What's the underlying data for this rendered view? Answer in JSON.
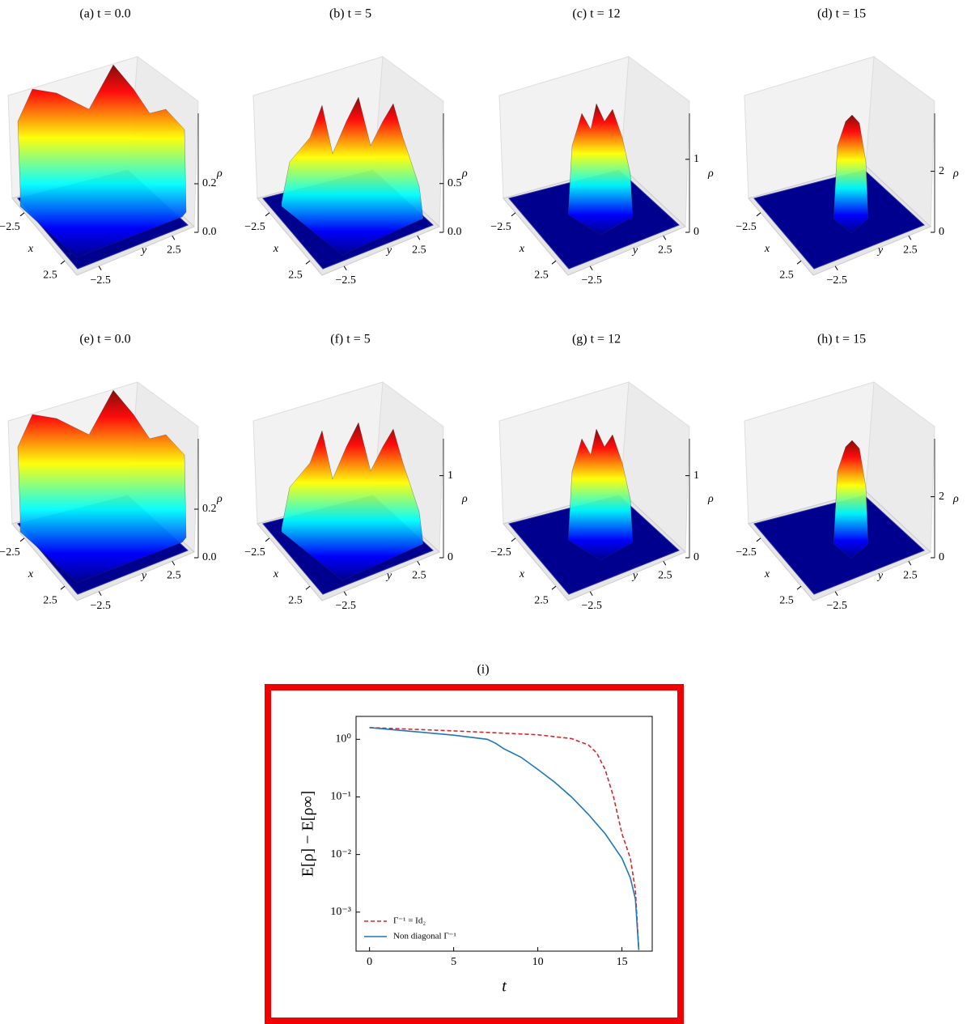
{
  "chart_data": [
    {
      "type": "surface",
      "title": "(a) t = 0.0",
      "xlabel": "x",
      "ylabel": "y",
      "zlabel": "ρ",
      "xlim": [
        -4,
        4
      ],
      "ylim": [
        -4,
        4
      ],
      "zlim": [
        0,
        0.49
      ],
      "xticks": [
        {
          "value": -2.5,
          "label": "−2.5"
        },
        2.5
      ],
      "yticks": [
        {
          "value": -2.5,
          "label": "−2.5"
        },
        2.5
      ],
      "zticks": [
        {
          "value": 0,
          "label": "0.0"
        },
        0.2
      ]
    },
    {
      "type": "surface",
      "title": "(b) t = 5",
      "xlabel": "x",
      "ylabel": "y",
      "zlabel": "ρ",
      "xlim": [
        -4,
        4
      ],
      "ylim": [
        -4,
        4
      ],
      "zlim": [
        0,
        1.22
      ],
      "xticks": [
        {
          "value": -2.5,
          "label": "−2.5"
        },
        2.5
      ],
      "yticks": [
        {
          "value": -2.5,
          "label": "−2.5"
        },
        2.5
      ],
      "zticks": [
        {
          "value": 0,
          "label": "0.0"
        },
        0.5
      ]
    },
    {
      "type": "surface",
      "title": "(c) t = 12",
      "xlabel": "x",
      "ylabel": "y",
      "zlabel": "ρ",
      "xlim": [
        -4,
        4
      ],
      "ylim": [
        -4,
        4
      ],
      "zlim": [
        0,
        1.63
      ],
      "xticks": [
        {
          "value": -2.5,
          "label": "−2.5"
        },
        2.5
      ],
      "yticks": [
        {
          "value": -2.5,
          "label": "−2.5"
        },
        2.5
      ],
      "zticks": [
        0,
        1
      ]
    },
    {
      "type": "surface",
      "title": "(d) t = 15",
      "xlabel": "x",
      "ylabel": "y",
      "zlabel": "ρ",
      "xlim": [
        -4,
        4
      ],
      "ylim": [
        -4,
        4
      ],
      "zlim": [
        0,
        3.9
      ],
      "xticks": [
        {
          "value": -2.5,
          "label": "−2.5"
        },
        2.5
      ],
      "yticks": [
        {
          "value": -2.5,
          "label": "−2.5"
        },
        2.5
      ],
      "zticks": [
        0,
        2
      ]
    },
    {
      "type": "surface",
      "title": "(e) t = 0.0",
      "xlabel": "x",
      "ylabel": "y",
      "zlabel": "ρ",
      "xlim": [
        -4,
        4
      ],
      "ylim": [
        -4,
        4
      ],
      "zlim": [
        0,
        0.49
      ],
      "xticks": [
        {
          "value": -2.5,
          "label": "−2.5"
        },
        2.5
      ],
      "yticks": [
        {
          "value": -2.5,
          "label": "−2.5"
        },
        2.5
      ],
      "zticks": [
        {
          "value": 0,
          "label": "0.0"
        },
        0.2
      ]
    },
    {
      "type": "surface",
      "title": "(f) t = 5",
      "xlabel": "x",
      "ylabel": "y",
      "zlabel": "ρ",
      "xlim": [
        -4,
        4
      ],
      "ylim": [
        -4,
        4
      ],
      "zlim": [
        0,
        1.45
      ],
      "xticks": [
        {
          "value": -2.5,
          "label": "−2.5"
        },
        2.5
      ],
      "yticks": [
        {
          "value": -2.5,
          "label": "−2.5"
        },
        2.5
      ],
      "zticks": [
        0,
        1
      ]
    },
    {
      "type": "surface",
      "title": "(g) t = 12",
      "xlabel": "x",
      "ylabel": "y",
      "zlabel": "ρ",
      "xlim": [
        -4,
        4
      ],
      "ylim": [
        -4,
        4
      ],
      "zlim": [
        0,
        1.45
      ],
      "xticks": [
        {
          "value": -2.5,
          "label": "−2.5"
        },
        2.5
      ],
      "yticks": [
        {
          "value": -2.5,
          "label": "−2.5"
        },
        2.5
      ],
      "zticks": [
        0,
        1
      ]
    },
    {
      "type": "surface",
      "title": "(h) t = 15",
      "xlabel": "x",
      "ylabel": "y",
      "zlabel": "ρ",
      "xlim": [
        -4,
        4
      ],
      "ylim": [
        -4,
        4
      ],
      "zlim": [
        0,
        3.9
      ],
      "xticks": [
        {
          "value": -2.5,
          "label": "−2.5"
        },
        2.5
      ],
      "yticks": [
        {
          "value": -2.5,
          "label": "−2.5"
        },
        2.5
      ],
      "zticks": [
        0,
        2
      ]
    },
    {
      "type": "line",
      "title": "(i)",
      "xlabel": "t",
      "ylabel": "E[ρ] − E[ρ∞]",
      "log_y": true,
      "legend": "lower left",
      "xlim": [
        -0.8,
        16.8
      ],
      "ylim": [
        0.00021,
        2.5
      ],
      "xticks": [
        0,
        5,
        10,
        15
      ],
      "yticks": [
        {
          "value": 0.001,
          "label": "10⁻³"
        },
        {
          "value": 0.01,
          "label": "10⁻²"
        },
        {
          "value": 0.1,
          "label": "10⁻¹"
        },
        {
          "value": 1,
          "label": "10⁰"
        }
      ],
      "series": [
        {
          "name": "Γ⁻¹ = Id₂",
          "color": "#d62728",
          "dashed": true,
          "x": [
            0,
            5,
            10,
            12,
            13,
            13.5,
            14,
            14.5,
            15,
            15.5,
            15.8,
            16
          ],
          "values": [
            1.6,
            1.4,
            1.2,
            1.03,
            0.8,
            0.58,
            0.3,
            0.1,
            0.023,
            0.0086,
            0.0024,
            0.00022
          ]
        },
        {
          "name": "Non diagonal Γ⁻¹",
          "color": "#1f77b4",
          "dashed": false,
          "x": [
            0,
            5,
            7,
            7.5,
            8,
            9,
            10,
            11,
            12,
            13,
            14,
            15,
            15.5,
            15.8,
            16
          ],
          "values": [
            1.6,
            1.18,
            1.0,
            0.85,
            0.68,
            0.49,
            0.3,
            0.18,
            0.1,
            0.05,
            0.023,
            0.0086,
            0.0039,
            0.0017,
            0.00022
          ]
        }
      ]
    }
  ]
}
